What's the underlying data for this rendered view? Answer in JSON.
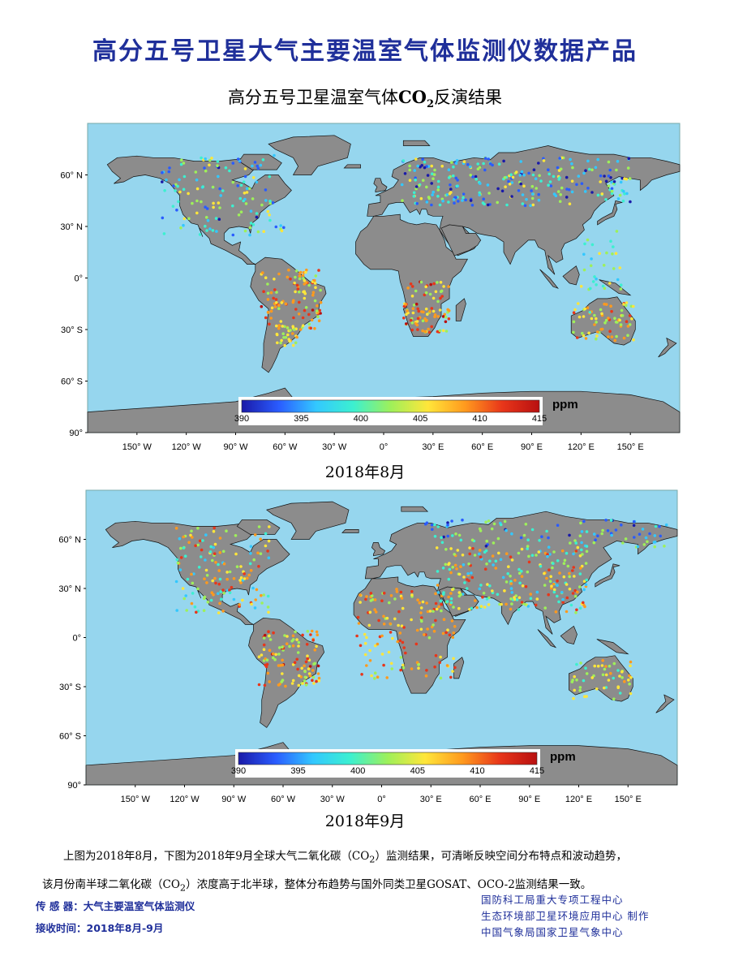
{
  "main_title": "高分五号卫星大气主要温室气体监测仪数据产品",
  "subtitle": {
    "prefix": "高分五号卫星温室气体",
    "chem": "CO",
    "sub": "2",
    "suffix": "反演结果"
  },
  "maps": [
    {
      "period": "2018年8月"
    },
    {
      "period": "2018年9月"
    }
  ],
  "axis": {
    "lat_labels": [
      "60° N",
      "30° N",
      "0°",
      "30° S",
      "60° S",
      "90°"
    ],
    "lon_labels": [
      "150° W",
      "120° W",
      "90° W",
      "60° W",
      "30° W",
      "0°",
      "30° E",
      "60° E",
      "90° E",
      "120° E",
      "150° E"
    ]
  },
  "colorbar": {
    "unit": "ppm",
    "ticks": [
      "390",
      "395",
      "400",
      "405",
      "410",
      "415"
    ],
    "colors": [
      "#1a1aa8",
      "#2a5cff",
      "#33c8ff",
      "#3cf0d0",
      "#9ef05a",
      "#ffe63a",
      "#ff9a1e",
      "#e8361a",
      "#b81010"
    ]
  },
  "colors": {
    "ocean": "#96d6ee",
    "land": "#8c8c8c",
    "title": "#1f2f9a"
  },
  "description": {
    "line1a": "上图为2018年8月，下图为2018年9月全球大气二氧化碳（CO",
    "line1b": "2",
    "line1c": "）监测结果，可清晰反映空间分布特点和波动趋势，",
    "line2a": "该月份南半球二氧化碳（CO",
    "line2b": "2",
    "line2c": "）浓度高于北半球，整体分布趋势与国外同类卫星GOSAT、OCO-2监测结果一致。"
  },
  "footer": {
    "sensor": "传 感 器：大气主要温室气体监测仪",
    "time": "接收时间：2018年8月-9月",
    "org1": "国防科工局重大专项工程中心",
    "org2": "生态环境部卫星环境应用中心  制作",
    "org3": "中国气象局国家卫星气象中心"
  }
}
